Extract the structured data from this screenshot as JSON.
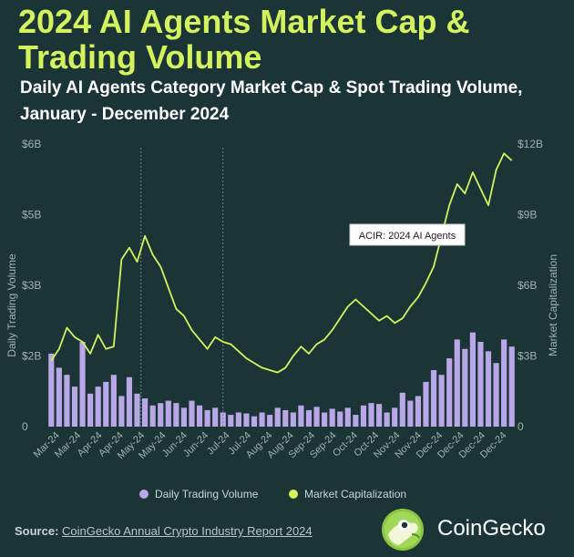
{
  "title": "2024 AI Agents Market Cap & Trading Volume",
  "subtitle": "Daily AI Agents Category Market Cap & Spot Trading Volume, January - December 2024",
  "source": {
    "label": "Source:",
    "text": "CoinGecko Annual Crypto Industry Report 2024"
  },
  "brand": {
    "name": "CoinGecko"
  },
  "colors": {
    "background": "#1b3436",
    "volume": "#b9a7e8",
    "market_cap": "#d3f25e",
    "axis_text": "#9fb2b2"
  },
  "chart_data": {
    "type": "bar+line",
    "title": "2024 AI Agents Market Cap & Trading Volume",
    "subtitle": "Daily AI Agents Category Market Cap & Spot Trading Volume, January - December 2024",
    "left_axis": {
      "label": "Daily Trading Volume",
      "ticks": [
        "0",
        "$2B",
        "$3B",
        "$5B",
        "$6B"
      ],
      "tick_values": [
        0,
        1.5,
        3,
        4.5,
        6
      ],
      "range": [
        0,
        6
      ],
      "unit": "USD billions"
    },
    "right_axis": {
      "label": "Market Capitalization",
      "ticks": [
        "0",
        "$3B",
        "$6B",
        "$9B",
        "$12B"
      ],
      "tick_values": [
        0,
        3,
        6,
        9,
        12
      ],
      "range": [
        0,
        12
      ],
      "unit": "USD billions"
    },
    "x_axis": {
      "tick_labels": [
        "Mar-24",
        "Mar-24",
        "Apr-24",
        "Apr-24",
        "May-24",
        "May-24",
        "Jun-24",
        "Jun-24",
        "Jul-24",
        "Jul-24",
        "Aug-24",
        "Aug-24",
        "Sep-24",
        "Sep-24",
        "Oct-24",
        "Oct-24",
        "Nov-24",
        "Nov-24",
        "Dec-24",
        "Dec-24",
        "Dec-24",
        "Dec-24"
      ]
    },
    "legend": {
      "placement": "bottom",
      "entries": [
        "Daily Trading Volume",
        "Market Capitalization"
      ]
    },
    "annotation": {
      "text": "ACIR: 2024 AI Agents",
      "x_index": 22.5
    },
    "gridlines": {
      "horizontal": false,
      "vertical_dashed_at_index": [
        12,
        22.5
      ]
    },
    "series": [
      {
        "name": "Daily Trading Volume",
        "type": "bar",
        "axis": "left",
        "values": [
          1.55,
          1.25,
          1.1,
          0.85,
          1.8,
          0.7,
          0.85,
          0.95,
          1.1,
          0.65,
          1.05,
          0.7,
          0.6,
          0.45,
          0.5,
          0.55,
          0.5,
          0.4,
          0.55,
          0.45,
          0.35,
          0.4,
          0.3,
          0.25,
          0.3,
          0.28,
          0.22,
          0.3,
          0.25,
          0.4,
          0.35,
          0.3,
          0.45,
          0.35,
          0.42,
          0.3,
          0.38,
          0.32,
          0.4,
          0.25,
          0.45,
          0.5,
          0.48,
          0.3,
          0.4,
          0.72,
          0.55,
          0.65,
          0.95,
          1.2,
          1.1,
          1.45,
          1.85,
          1.65,
          2.0,
          1.8,
          1.6,
          1.35,
          1.85,
          1.7
        ]
      },
      {
        "name": "Market Capitalization",
        "type": "line",
        "axis": "right",
        "values": [
          2.8,
          3.3,
          4.2,
          3.8,
          3.6,
          3.1,
          3.9,
          3.3,
          3.4,
          7.1,
          7.6,
          7.0,
          8.1,
          7.3,
          6.8,
          5.9,
          5.0,
          4.7,
          4.1,
          3.7,
          3.3,
          3.8,
          3.6,
          3.5,
          3.2,
          2.9,
          2.7,
          2.5,
          2.4,
          2.3,
          2.5,
          3.0,
          3.4,
          3.1,
          3.5,
          3.7,
          4.1,
          4.6,
          5.1,
          5.4,
          5.1,
          4.8,
          4.5,
          4.7,
          4.4,
          4.6,
          5.1,
          5.5,
          6.1,
          6.8,
          8.1,
          9.4,
          10.3,
          9.9,
          10.8,
          10.1,
          9.4,
          10.9,
          11.6,
          11.3
        ]
      }
    ]
  }
}
